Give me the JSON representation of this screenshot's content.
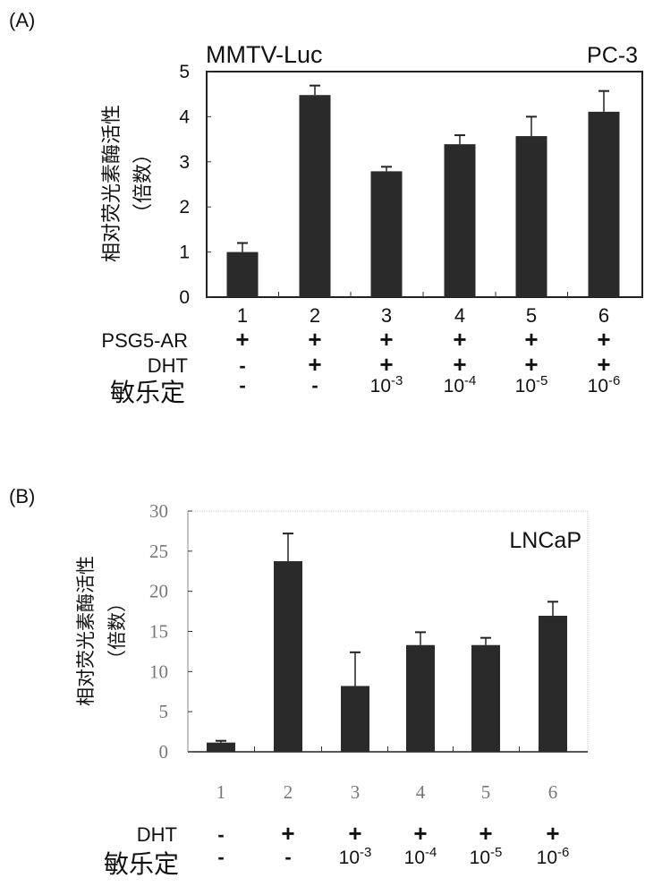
{
  "chart_data": [
    {
      "type": "bar",
      "panel_label": "(A)",
      "title": "MMTV-Luc",
      "cell_line": "PC-3",
      "ylabel": [
        "相对荧光素酶活性",
        "（倍数）"
      ],
      "ylim": [
        0,
        5
      ],
      "yticks": [
        0,
        1,
        2,
        3,
        4,
        5
      ],
      "categories": [
        "1",
        "2",
        "3",
        "4",
        "5",
        "6"
      ],
      "values": [
        1.0,
        4.48,
        2.79,
        3.39,
        3.57,
        4.11
      ],
      "error_upper": [
        1.2,
        4.69,
        2.89,
        3.59,
        4.0,
        4.57
      ],
      "bar_color": "#2a2a2a",
      "grid": false,
      "conditions": [
        {
          "label": "PSG5-AR",
          "values": [
            "+",
            "+",
            "+",
            "+",
            "+",
            "+"
          ]
        },
        {
          "label": "DHT",
          "values": [
            "-",
            "+",
            "+",
            "+",
            "+",
            "+"
          ]
        },
        {
          "label": "敏乐定",
          "values": [
            "-",
            "-",
            "10|-3",
            "10|-4",
            "10|-5",
            "10|-6"
          ]
        }
      ]
    },
    {
      "type": "bar",
      "panel_label": "(B)",
      "title": "",
      "cell_line": "LNCaP",
      "ylabel": [
        "相对荧光素酶活性",
        "（倍数）"
      ],
      "ylim": [
        0,
        30
      ],
      "yticks": [
        0,
        5,
        10,
        15,
        20,
        25,
        30
      ],
      "categories": [
        "1",
        "2",
        "3",
        "4",
        "5",
        "6"
      ],
      "values": [
        1.15,
        23.75,
        8.2,
        13.3,
        13.3,
        16.95
      ],
      "error_upper": [
        1.37,
        27.2,
        12.4,
        14.9,
        14.2,
        18.7
      ],
      "bar_color": "#2a2a2a",
      "grid": false,
      "conditions": [
        {
          "label": "DHT",
          "values": [
            "-",
            "+",
            "+",
            "+",
            "+",
            "+"
          ]
        },
        {
          "label": "敏乐定",
          "values": [
            "-",
            "-",
            "10|-3",
            "10|-4",
            "10|-5",
            "10|-6"
          ]
        }
      ]
    }
  ]
}
